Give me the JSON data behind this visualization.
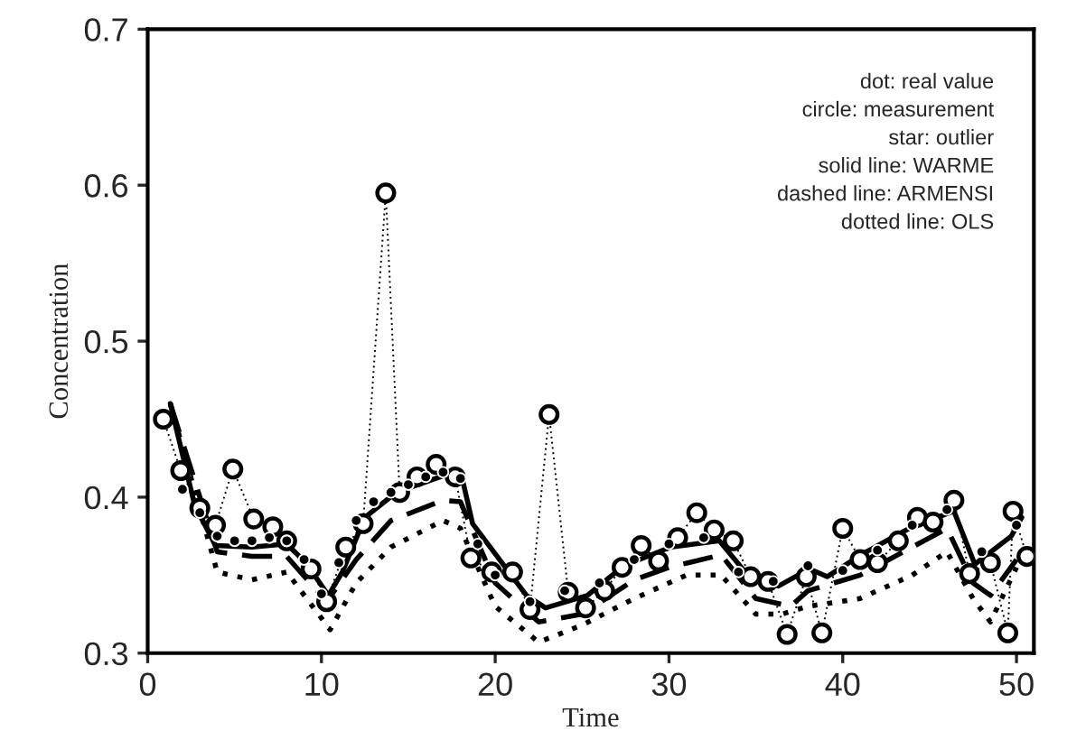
{
  "chart_data": {
    "type": "line",
    "xlabel": "Time",
    "ylabel": "Concentration",
    "xlim": [
      0,
      51
    ],
    "ylim": [
      0.3,
      0.7
    ],
    "xticks": [
      0,
      10,
      20,
      30,
      40,
      50
    ],
    "yticks": [
      0.3,
      0.4,
      0.5,
      0.6,
      0.7
    ],
    "grid": false,
    "legend": false,
    "annotations": [
      "dot: real value",
      "circle: measurement",
      "star: outlier",
      "solid line: WARME",
      "dashed line: ARMENSI",
      "dotted line: OLS"
    ],
    "series": [
      {
        "marker": "circle",
        "line_style": "dotted",
        "color": "#000000",
        "x": [
          0.9,
          1.9,
          3,
          3.9,
          4.9,
          6.1,
          7.2,
          8,
          9.4,
          10.3,
          11.4,
          12.4,
          13.7,
          14.5,
          15.5,
          16.6,
          17.7,
          18.6,
          19.8,
          21,
          22,
          23.1,
          24.2,
          25.2,
          26.3,
          27.3,
          28.4,
          29.4,
          30.5,
          31.6,
          32.6,
          33.7,
          34.7,
          35.7,
          36.8,
          37.9,
          38.8,
          40,
          41,
          42,
          43.2,
          44.3,
          45.2,
          46.4,
          47.3,
          48.5,
          49.5,
          49.8,
          50.6
        ],
        "values": [
          0.45,
          0.417,
          0.393,
          0.382,
          0.418,
          0.386,
          0.381,
          0.372,
          0.354,
          0.333,
          0.368,
          0.383,
          0.595,
          0.403,
          0.413,
          0.421,
          0.413,
          0.361,
          0.352,
          0.352,
          0.328,
          0.453,
          0.339,
          0.329,
          0.34,
          0.355,
          0.369,
          0.359,
          0.374,
          0.39,
          0.379,
          0.372,
          0.349,
          0.346,
          0.312,
          0.349,
          0.313,
          0.38,
          0.36,
          0.358,
          0.372,
          0.387,
          0.384,
          0.398,
          0.351,
          0.358,
          0.313,
          0.391,
          0.362
        ]
      },
      {
        "type": "scatter",
        "marker": "circle",
        "color": "#000000",
        "x": [
          2,
          3,
          4,
          5,
          6,
          7,
          8,
          9,
          10,
          11,
          12,
          13,
          14,
          15,
          16,
          17,
          18,
          19,
          20,
          22,
          24,
          26,
          28,
          30,
          32,
          34,
          36,
          38,
          40,
          42,
          44,
          46,
          48,
          50
        ],
        "values": [
          0.405,
          0.39,
          0.375,
          0.372,
          0.372,
          0.374,
          0.372,
          0.36,
          0.338,
          0.358,
          0.385,
          0.397,
          0.403,
          0.408,
          0.413,
          0.416,
          0.412,
          0.37,
          0.35,
          0.333,
          0.34,
          0.345,
          0.36,
          0.37,
          0.374,
          0.352,
          0.346,
          0.356,
          0.353,
          0.366,
          0.382,
          0.392,
          0.365,
          0.382
        ]
      },
      {
        "marker": "none",
        "line_style": "solid",
        "color": "#000000",
        "x": [
          1.3,
          2.7,
          3.9,
          6,
          8,
          9.1,
          10.4,
          11.2,
          12.5,
          14.3,
          17.1,
          18.1,
          18.7,
          21.8,
          22.9,
          25.3,
          27.4,
          30.1,
          32.9,
          34.6,
          36.3,
          38.1,
          39.1,
          41.2,
          44,
          46.4,
          47.6,
          49.7,
          50.3
        ],
        "values": [
          0.46,
          0.395,
          0.369,
          0.368,
          0.37,
          0.358,
          0.337,
          0.352,
          0.387,
          0.403,
          0.414,
          0.412,
          0.383,
          0.337,
          0.329,
          0.337,
          0.356,
          0.368,
          0.372,
          0.349,
          0.343,
          0.354,
          0.349,
          0.364,
          0.381,
          0.391,
          0.357,
          0.375,
          0.387
        ]
      },
      {
        "marker": "none",
        "line_style": "dashed",
        "color": "#000000",
        "x": [
          1.3,
          4,
          6,
          8,
          10.3,
          12,
          14,
          17,
          18,
          20,
          22.5,
          25,
          28,
          30,
          33,
          35,
          37,
          38,
          41,
          44,
          46,
          47.5,
          48.5,
          50
        ],
        "values": [
          0.46,
          0.365,
          0.362,
          0.362,
          0.333,
          0.36,
          0.385,
          0.398,
          0.397,
          0.345,
          0.32,
          0.325,
          0.347,
          0.355,
          0.363,
          0.335,
          0.33,
          0.34,
          0.35,
          0.368,
          0.38,
          0.345,
          0.337,
          0.36
        ]
      },
      {
        "marker": "none",
        "line_style": "dotted",
        "color": "#000000",
        "x": [
          1.3,
          4,
          6,
          8,
          10.5,
          12,
          14,
          17,
          18,
          20,
          22.5,
          25,
          28,
          31,
          33,
          35,
          36.5,
          38,
          41,
          44,
          46,
          47.5,
          48.5,
          50
        ],
        "values": [
          0.46,
          0.352,
          0.347,
          0.352,
          0.315,
          0.345,
          0.368,
          0.385,
          0.38,
          0.33,
          0.307,
          0.318,
          0.335,
          0.35,
          0.35,
          0.325,
          0.325,
          0.33,
          0.335,
          0.35,
          0.365,
          0.335,
          0.32,
          0.355
        ]
      }
    ]
  }
}
